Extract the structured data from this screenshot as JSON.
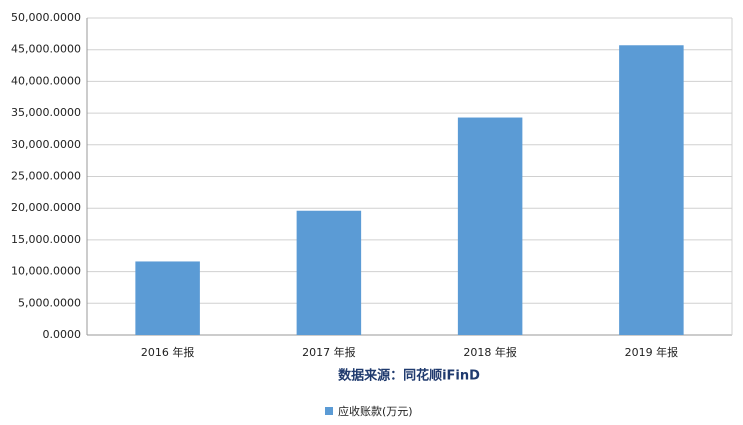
{
  "chart_data": {
    "type": "bar",
    "x_label": "数据来源：同花顺iFinD",
    "categories": [
      "2016 年报",
      "2017 年报",
      "2018 年报",
      "2019 年报"
    ],
    "series": [
      {
        "name": "应收账款(万元)",
        "color": "#5b9bd5",
        "values": [
          11600,
          19600,
          34300,
          45700
        ]
      }
    ],
    "ylim": [
      0,
      50000
    ],
    "yticks": [
      {
        "value": 0,
        "label": "0.0000"
      },
      {
        "value": 5000,
        "label": "5,000.0000"
      },
      {
        "value": 10000,
        "label": "10,000.0000"
      },
      {
        "value": 15000,
        "label": "15,000.0000"
      },
      {
        "value": 20000,
        "label": "20,000.0000"
      },
      {
        "value": 25000,
        "label": "25,000.0000"
      },
      {
        "value": 30000,
        "label": "30,000.0000"
      },
      {
        "value": 35000,
        "label": "35,000.0000"
      },
      {
        "value": 40000,
        "label": "40,000.0000"
      },
      {
        "value": 45000,
        "label": "45,000.0000"
      },
      {
        "value": 50000,
        "label": "50,000.0000"
      }
    ],
    "grid": true,
    "legend": "bottom"
  }
}
